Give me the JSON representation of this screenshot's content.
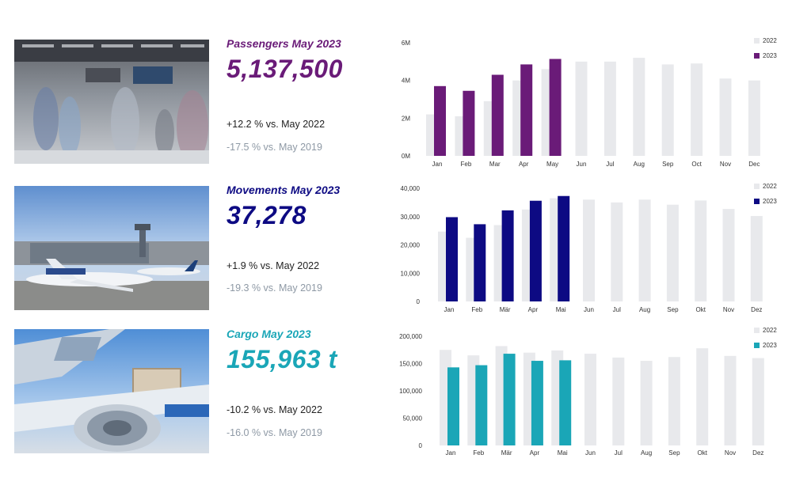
{
  "panels": [
    {
      "id": "passengers",
      "title": "Passengers May 2023",
      "value": "5,137,500",
      "cmp_prev": "+12.2 % vs. May 2022",
      "cmp_2019": "-17.5 % vs. May 2019",
      "color": "#6a1b78",
      "photo_icon": "terminal-crowd-photo"
    },
    {
      "id": "movements",
      "title": "Movements May 2023",
      "value": "37,278",
      "cmp_prev": "+1.9 % vs. May 2022",
      "cmp_2019": "-19.3 % vs. May 2019",
      "color": "#0d0a83",
      "photo_icon": "airport-apron-photo"
    },
    {
      "id": "cargo",
      "title": "Cargo May 2023",
      "value": "155,963 t",
      "cmp_prev": "-10.2 % vs. May 2022",
      "cmp_2019": "-16.0 % vs. May 2019",
      "color": "#1aa6b7",
      "photo_icon": "cargo-aircraft-photo"
    }
  ],
  "chart_data": [
    {
      "type": "bar",
      "categories": [
        "Jan",
        "Feb",
        "Mar",
        "Apr",
        "May",
        "Jun",
        "Jul",
        "Aug",
        "Sep",
        "Oct",
        "Nov",
        "Dec"
      ],
      "series": [
        {
          "name": "2022",
          "color": "#e8e9ec",
          "values": [
            2.2,
            2.1,
            2.9,
            4.0,
            4.6,
            5.0,
            5.0,
            5.2,
            4.85,
            4.9,
            4.1,
            4.0
          ]
        },
        {
          "name": "2023",
          "color": "#6a1b78",
          "values": [
            3.7,
            3.45,
            4.3,
            4.85,
            5.14,
            null,
            null,
            null,
            null,
            null,
            null,
            null
          ]
        }
      ],
      "yticks": [
        "0M",
        "2M",
        "4M",
        "6M"
      ],
      "ylim": [
        0,
        6
      ],
      "legend": "top-right",
      "grid": false
    },
    {
      "type": "bar",
      "categories": [
        "Jan",
        "Feb",
        "Mär",
        "Apr",
        "Mai",
        "Jun",
        "Jul",
        "Aug",
        "Sep",
        "Okt",
        "Nov",
        "Dez"
      ],
      "series": [
        {
          "name": "2022",
          "color": "#e8e9ec",
          "values": [
            24700,
            22500,
            27000,
            32500,
            36500,
            36000,
            35000,
            36000,
            34200,
            35700,
            32700,
            30200
          ]
        },
        {
          "name": "2023",
          "color": "#0d0a83",
          "values": [
            29800,
            27300,
            32200,
            35600,
            37278,
            null,
            null,
            null,
            null,
            null,
            null,
            null
          ]
        }
      ],
      "yticks": [
        "0",
        "10,000",
        "20,000",
        "30,000",
        "40,000"
      ],
      "ylim": [
        0,
        40000
      ],
      "legend": "top-right",
      "grid": false
    },
    {
      "type": "bar",
      "categories": [
        "Jan",
        "Feb",
        "Mär",
        "Apr",
        "Mai",
        "Jun",
        "Jul",
        "Aug",
        "Sep",
        "Okt",
        "Nov",
        "Dez"
      ],
      "series": [
        {
          "name": "2022",
          "color": "#e8e9ec",
          "values": [
            175000,
            165000,
            182000,
            170000,
            174000,
            168000,
            161000,
            155000,
            162000,
            178000,
            164000,
            160000
          ]
        },
        {
          "name": "2023",
          "color": "#1aa6b7",
          "values": [
            143000,
            147000,
            168000,
            155000,
            155963,
            null,
            null,
            null,
            null,
            null,
            null,
            null
          ]
        }
      ],
      "yticks": [
        "0",
        "50,000",
        "100,000",
        "150,000",
        "200,000"
      ],
      "ylim": [
        0,
        200000
      ],
      "legend": "top-right",
      "grid": false
    }
  ]
}
